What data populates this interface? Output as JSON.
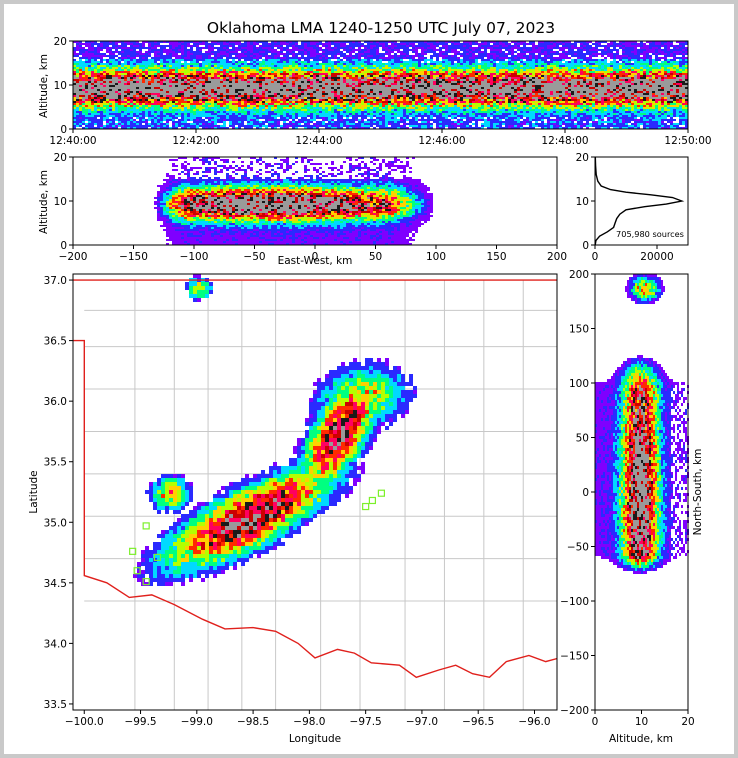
{
  "title": "Oklahoma LMA 1240-1250 UTC July 07, 2023",
  "colors": {
    "frame": "#c9c9c9",
    "state_border": "#e0201c",
    "counties": "#c8c8c8",
    "stations": "#7cf02a",
    "colormap": [
      "#ffffff",
      "#7f00ff",
      "#2a2aff",
      "#00d9ff",
      "#00ff80",
      "#b4ff00",
      "#ffd000",
      "#ff2a00",
      "#ff0060",
      "#cc0000",
      "#1a1a1a",
      "#9a9a9a"
    ]
  },
  "chart_data": [
    {
      "id": "time_height",
      "type": "heatmap",
      "ylabel": "Altitude, km",
      "xlabel": "",
      "xticks": [
        "12:40:00",
        "12:42:00",
        "12:44:00",
        "12:46:00",
        "12:48:00",
        "12:50:00"
      ],
      "xlim_minutes": [
        0,
        10
      ],
      "ylim": [
        0,
        20
      ],
      "yticks": [
        0,
        10,
        20
      ],
      "description_values": {
        "peak_altitude_km": 9.5,
        "band_bottom_km": 5,
        "band_top_km": 14
      }
    },
    {
      "id": "ew_height",
      "type": "heatmap",
      "xlabel": "East-West, km",
      "ylabel": "Altitude, km",
      "xlim": [
        -200,
        200
      ],
      "ylim": [
        0,
        20
      ],
      "xticks": [
        -200,
        -150,
        -100,
        -50,
        0,
        50,
        100,
        150,
        200
      ],
      "yticks": [
        0,
        10,
        20
      ]
    },
    {
      "id": "altitude_histogram",
      "type": "line",
      "xlim": [
        0,
        30000
      ],
      "ylim": [
        0,
        20
      ],
      "xticks": [
        0,
        20000
      ],
      "yticks": [
        0,
        10,
        20
      ],
      "annotation": "705,980 sources",
      "points": [
        [
          60,
          0
        ],
        [
          300,
          1
        ],
        [
          1500,
          2
        ],
        [
          4000,
          3
        ],
        [
          6000,
          4
        ],
        [
          6500,
          5
        ],
        [
          7000,
          6
        ],
        [
          8000,
          7
        ],
        [
          10000,
          8
        ],
        [
          16000,
          8.7
        ],
        [
          23000,
          9.3
        ],
        [
          28000,
          10
        ],
        [
          25000,
          10.8
        ],
        [
          18000,
          11.4
        ],
        [
          10000,
          12
        ],
        [
          5000,
          12.6
        ],
        [
          2000,
          13.4
        ],
        [
          900,
          14.5
        ],
        [
          400,
          16
        ],
        [
          200,
          18
        ],
        [
          100,
          20
        ]
      ]
    },
    {
      "id": "plan_view",
      "type": "heatmap",
      "xlabel": "Longitude",
      "ylabel": "Latitude",
      "xlim": [
        -100.1,
        -95.8
      ],
      "ylim": [
        33.45,
        37.05
      ],
      "xticks": [
        -100.0,
        -99.5,
        -99.0,
        -98.5,
        -98.0,
        -97.5,
        -97.0,
        -96.5,
        -96.0
      ],
      "xtick_labels": [
        "−100.0",
        "−99.5",
        "−99.0",
        "−98.5",
        "−98.0",
        "−97.5",
        "−97.0",
        "−96.5",
        "−96.0"
      ],
      "yticks": [
        33.5,
        34.0,
        34.5,
        35.0,
        35.5,
        36.0,
        36.5,
        37.0
      ],
      "ytick_labels": [
        "33.5",
        "34.0",
        "34.5",
        "35.0",
        "35.5",
        "36.0",
        "36.5",
        "37.0"
      ],
      "stations": [
        [
          -99.57,
          34.76
        ],
        [
          -99.45,
          34.97
        ],
        [
          -99.53,
          34.6
        ],
        [
          -99.45,
          34.51
        ],
        [
          -99.35,
          34.71
        ],
        [
          -97.5,
          35.13
        ],
        [
          -97.44,
          35.18
        ],
        [
          -97.36,
          35.24
        ]
      ]
    },
    {
      "id": "ns_height",
      "type": "heatmap",
      "xlabel": "Altitude, km",
      "ylabel": "North-South, km",
      "xlim": [
        0,
        20
      ],
      "ylim": [
        -200,
        200
      ],
      "xticks": [
        0,
        10,
        20
      ],
      "yticks": [
        -200,
        -150,
        -100,
        -50,
        0,
        50,
        100,
        150,
        200
      ]
    }
  ]
}
